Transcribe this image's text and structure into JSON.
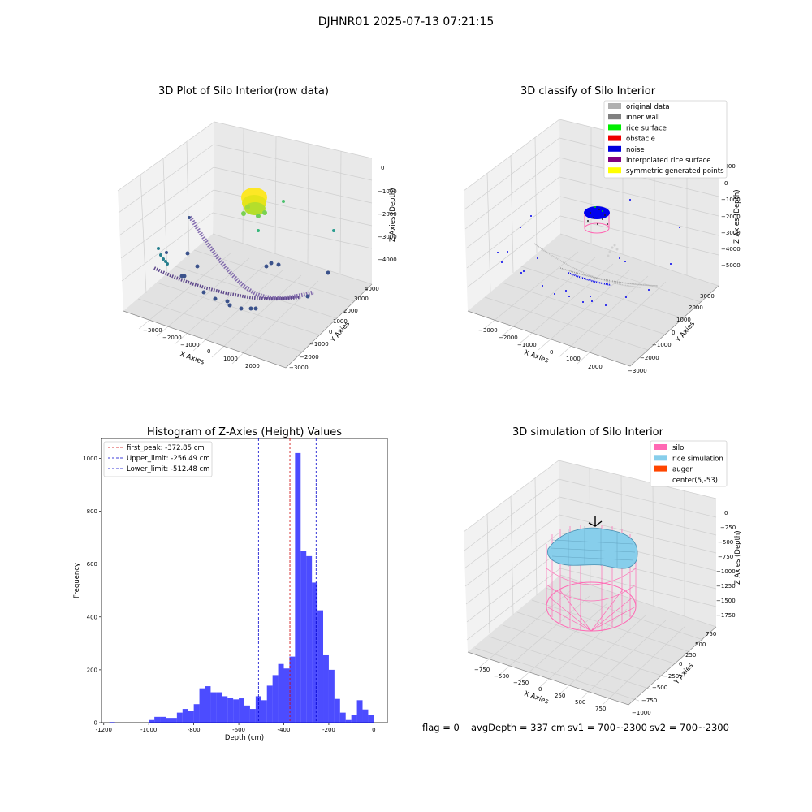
{
  "figure": {
    "suptitle": "DJHNR01 2025-07-13 07:21:15",
    "status": {
      "flag": "flag = 0",
      "avg_depth": "avgDepth = 337 cm",
      "sv1": "sv1 = 700~2300",
      "sv2": "sv2 = 700~2300"
    }
  },
  "chart_data": [
    {
      "type": "scatter",
      "title": "3D Plot of Silo Interior(row data)",
      "xlabel": "X Axies",
      "ylabel": "Y Axies",
      "zlabel": "Z Axies (Depth)",
      "xticks": [
        "−3000",
        "−2000",
        "−1000",
        "0",
        "1000",
        "2000"
      ],
      "yticks": [
        "−3000",
        "−2000",
        "−1000",
        "0",
        "1000",
        "2000",
        "3000",
        "4000"
      ],
      "zticks": [
        "0",
        "−1000",
        "−2000",
        "−3000",
        "−4000"
      ],
      "colormap": "viridis"
    },
    {
      "type": "scatter",
      "title": "3D classify of Silo Interior",
      "xlabel": "X Axies",
      "ylabel": "Y Axies",
      "zlabel": "Z Axies (Depth)",
      "xticks": [
        "−3000",
        "−2000",
        "−1000",
        "0",
        "1000",
        "2000"
      ],
      "yticks": [
        "−3000",
        "−2000",
        "−1000",
        "0",
        "1000",
        "2000",
        "3000"
      ],
      "zticks": [
        "1000",
        "0",
        "−1000",
        "−2000",
        "−3000",
        "−4000",
        "−5000"
      ],
      "legend_position": "top-right",
      "legend": [
        {
          "label": "original data",
          "color": "#b0b0b0"
        },
        {
          "label": "inner wall",
          "color": "#808080"
        },
        {
          "label": "rice surface",
          "color": "#00ee00"
        },
        {
          "label": "obstacle",
          "color": "#ee0000"
        },
        {
          "label": "noise",
          "color": "#0000dd"
        },
        {
          "label": "interpolated rice surface",
          "color": "#800080"
        },
        {
          "label": "symmetric generated points",
          "color": "#ffff00"
        }
      ]
    },
    {
      "type": "bar",
      "title": "Histogram of Z-Axies (Height) Values",
      "xlabel": "Depth (cm)",
      "ylabel": "Frequency",
      "xlim": [
        -1210,
        60
      ],
      "ylim": [
        0,
        1075
      ],
      "xticks": [
        -1200,
        -1000,
        -800,
        -600,
        -400,
        -200,
        0
      ],
      "yticks": [
        0,
        200,
        400,
        600,
        800,
        1000
      ],
      "bin_width": 25,
      "bin_starts": [
        -1175,
        -1150,
        -1125,
        -1100,
        -1075,
        -1050,
        -1025,
        -1000,
        -975,
        -950,
        -925,
        -900,
        -875,
        -850,
        -825,
        -800,
        -775,
        -750,
        -725,
        -700,
        -675,
        -650,
        -625,
        -600,
        -575,
        -550,
        -525,
        -500,
        -475,
        -450,
        -425,
        -400,
        -375,
        -350,
        -325,
        -300,
        -275,
        -250,
        -225,
        -200,
        -175,
        -150,
        -125,
        -100,
        -75,
        -50,
        -25
      ],
      "values": [
        2,
        0,
        0,
        0,
        0,
        0,
        0,
        10,
        22,
        22,
        18,
        18,
        38,
        52,
        45,
        70,
        130,
        138,
        115,
        115,
        100,
        95,
        88,
        92,
        65,
        52,
        100,
        85,
        140,
        180,
        222,
        205,
        250,
        1020,
        650,
        630,
        530,
        425,
        255,
        200,
        90,
        38,
        10,
        28,
        85,
        50,
        28
      ],
      "color": "#0000ff",
      "legend_position": "top-left",
      "vlines": [
        {
          "label": "first_peak: -372.85 cm",
          "x": -372.85,
          "color": "#cc0000"
        },
        {
          "label": "Upper_limit: -256.49 cm",
          "x": -256.49,
          "color": "#0000cc"
        },
        {
          "label": "Lower_limit: -512.48 cm",
          "x": -512.48,
          "color": "#0000cc"
        }
      ]
    },
    {
      "type": "surface",
      "title": "3D simulation of Silo Interior",
      "xlabel": "X Axies",
      "ylabel": "Y Axies",
      "zlabel": "Z Axies (Depth)",
      "xticks": [
        "−750",
        "−500",
        "−250",
        "0",
        "250",
        "500",
        "750"
      ],
      "yticks": [
        "−1000",
        "−750",
        "−500",
        "−250",
        "0",
        "250",
        "500",
        "750"
      ],
      "zticks": [
        "0",
        "−250",
        "−500",
        "−750",
        "−1000",
        "−1250",
        "−1500",
        "−1750"
      ],
      "legend_position": "top-right",
      "legend": [
        {
          "label": "silo",
          "color": "#ff69b4"
        },
        {
          "label": "rice simulation",
          "color": "#87ceeb"
        },
        {
          "label": "auger",
          "color": "#ff4500"
        },
        {
          "label": "center(5,-53)",
          "color": ""
        }
      ]
    }
  ]
}
